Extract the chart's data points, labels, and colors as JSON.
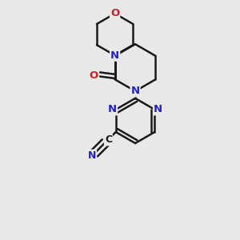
{
  "bg_color": "#e8e8e8",
  "bond_color": "#1a1a1a",
  "N_color": "#2222cc",
  "O_color": "#cc2222",
  "lw": 1.8,
  "dbl_off": 0.014,
  "tri_off": 0.018,
  "fig_w": 3.0,
  "fig_h": 3.0,
  "dpi": 100,
  "font_size": 9.5,
  "xlim": [
    0.05,
    0.95
  ],
  "ylim": [
    0.03,
    0.97
  ]
}
